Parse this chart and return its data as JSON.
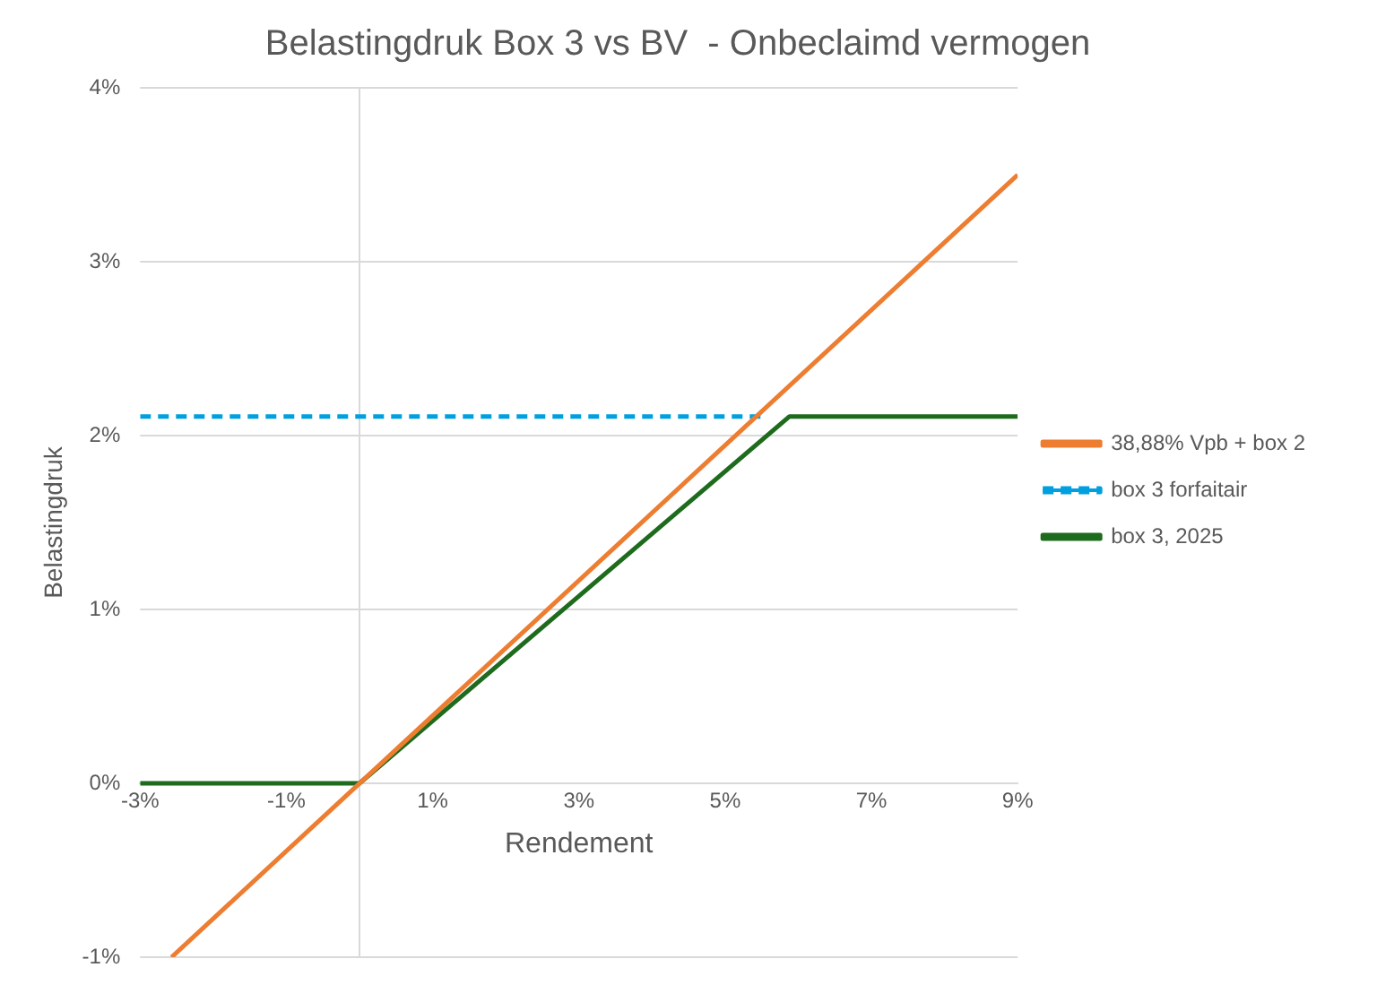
{
  "chart_data": {
    "type": "line",
    "title": "Belastingdruk Box 3 vs BV  - Onbeclaimd vermogen",
    "xlabel": "Rendement",
    "ylabel": "Belastingdruk",
    "xlim": [
      -3,
      9
    ],
    "ylim": [
      -1,
      4
    ],
    "xticks": [
      {
        "value": -3,
        "label": "-3%"
      },
      {
        "value": -1,
        "label": "-1%"
      },
      {
        "value": 1,
        "label": "1%"
      },
      {
        "value": 3,
        "label": "3%"
      },
      {
        "value": 5,
        "label": "5%"
      },
      {
        "value": 7,
        "label": "7%"
      },
      {
        "value": 9,
        "label": "9%"
      }
    ],
    "yticks": [
      {
        "value": -1,
        "label": "-1%"
      },
      {
        "value": 0,
        "label": "0%"
      },
      {
        "value": 1,
        "label": "1%"
      },
      {
        "value": 2,
        "label": "2%"
      },
      {
        "value": 3,
        "label": "3%"
      },
      {
        "value": 4,
        "label": "4%"
      }
    ],
    "grid": "y",
    "legend": "right",
    "marker": "none",
    "series": [
      {
        "name": "38,88% Vpb + box 2",
        "color": "#ed7d31",
        "x": [
          -2.57,
          9
        ],
        "values": [
          -1,
          3.5
        ],
        "line_style": "solid"
      },
      {
        "name": "box 3 forfaitair",
        "color": "#00a0e0",
        "x": [
          -3,
          5.5
        ],
        "values": [
          2.11,
          2.11
        ],
        "line_style": "dashed"
      },
      {
        "name": "box 3, 2025",
        "color": "#1e6b1e",
        "x": [
          -3,
          0,
          5.88,
          9
        ],
        "values": [
          0,
          0,
          2.11,
          2.11
        ],
        "line_style": "solid"
      }
    ]
  }
}
